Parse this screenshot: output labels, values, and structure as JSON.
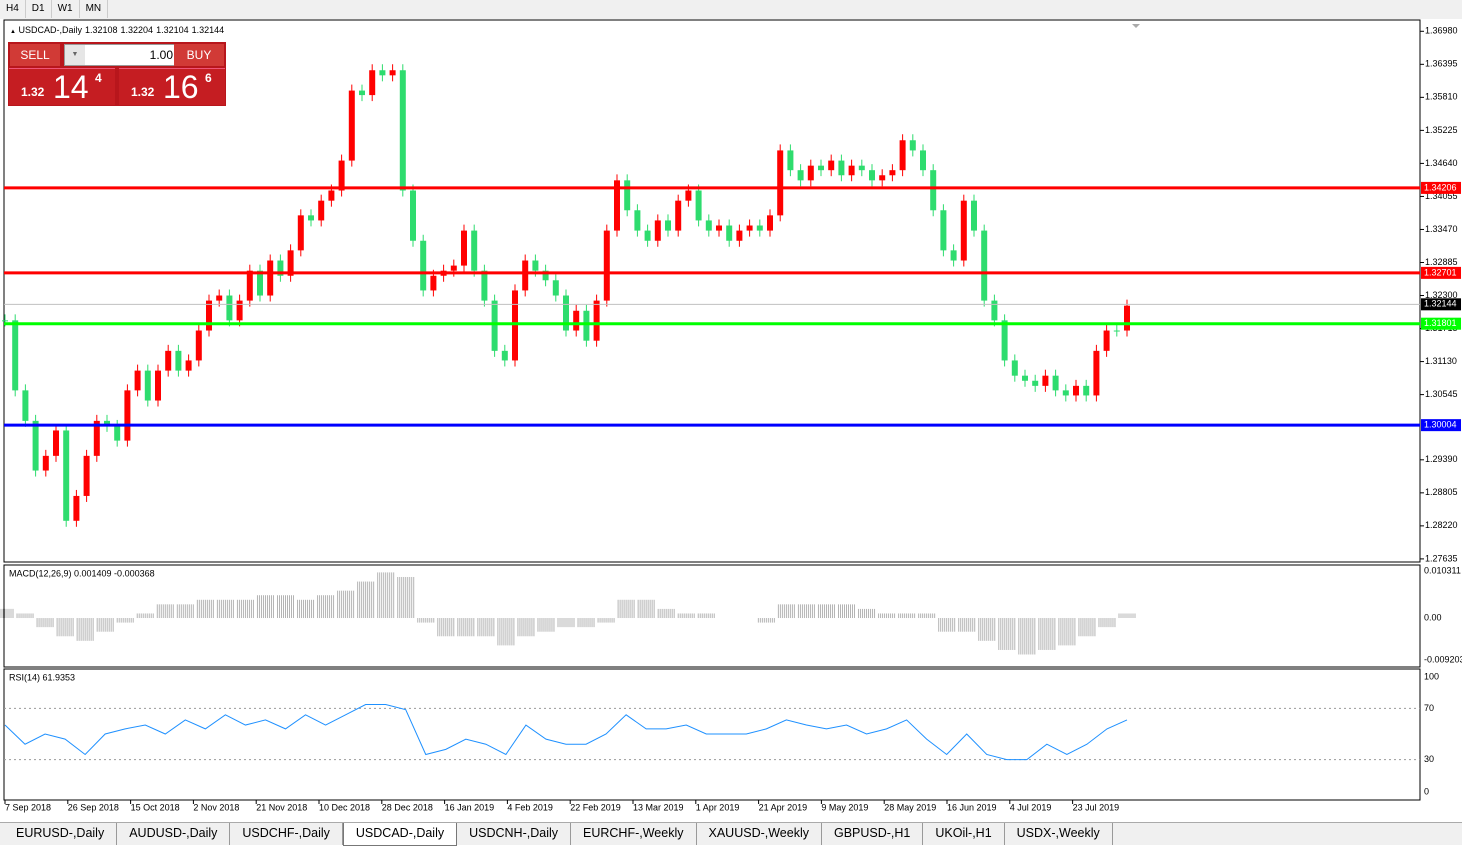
{
  "toolbar": {
    "timeframes": [
      "H4",
      "D1",
      "W1",
      "MN"
    ]
  },
  "chart": {
    "symbol": "USDCAD-,Daily",
    "ohlc": [
      "1.32108",
      "1.32204",
      "1.32104",
      "1.32144"
    ],
    "price_range": [
      1.2758,
      1.3718
    ],
    "price_axis": [
      "1.36980",
      "1.36395",
      "1.35810",
      "1.35225",
      "1.34640",
      "1.34055",
      "1.33470",
      "1.32885",
      "1.32300",
      "1.31715",
      "1.31130",
      "1.30545",
      "1.29390",
      "1.28805",
      "1.28220",
      "1.27635"
    ],
    "levels": [
      {
        "value": 1.34206,
        "label": "1.34206",
        "color": "#ff0000"
      },
      {
        "value": 1.32701,
        "label": "1.32701",
        "color": "#ff0000"
      },
      {
        "value": 1.31801,
        "label": "1.31801",
        "color": "#00ff00"
      },
      {
        "value": 1.30004,
        "label": "1.30004",
        "color": "#0000ff"
      }
    ],
    "current": {
      "value": 1.32144,
      "label": "1.32144"
    },
    "price_series": [
      1.3186,
      1.3062,
      1.3008,
      1.292,
      1.2946,
      1.2991,
      1.2831,
      1.2875,
      1.2946,
      1.3008,
      1.2999,
      1.2973,
      1.3062,
      1.3097,
      1.3044,
      1.3097,
      1.3132,
      1.3097,
      1.3115,
      1.3168,
      1.3221,
      1.323,
      1.3186,
      1.3221,
      1.3274,
      1.323,
      1.3292,
      1.3265,
      1.331,
      1.3372,
      1.3363,
      1.3398,
      1.3416,
      1.3469,
      1.3593,
      1.3585,
      1.3629,
      1.362,
      1.3629,
      1.3416,
      1.3327,
      1.3239,
      1.3265,
      1.3274,
      1.3283,
      1.3345,
      1.3274,
      1.3221,
      1.3132,
      1.3115,
      1.3239,
      1.3292,
      1.3274,
      1.3257,
      1.323,
      1.3168,
      1.3203,
      1.315,
      1.3221,
      1.3345,
      1.3434,
      1.3381,
      1.3345,
      1.3327,
      1.3363,
      1.3345,
      1.3398,
      1.3416,
      1.3363,
      1.3345,
      1.3354,
      1.3327,
      1.3345,
      1.3354,
      1.3345,
      1.3372,
      1.3487,
      1.3452,
      1.3434,
      1.346,
      1.3452,
      1.3469,
      1.3443,
      1.346,
      1.3452,
      1.3434,
      1.3443,
      1.3452,
      1.3505,
      1.3487,
      1.3452,
      1.3381,
      1.331,
      1.3292,
      1.3398,
      1.3345,
      1.3221,
      1.3186,
      1.3115,
      1.3088,
      1.3079,
      1.307,
      1.3088,
      1.3062,
      1.3053,
      1.307,
      1.3053,
      1.3132,
      1.3168,
      1.3168,
      1.3212
    ],
    "date_labels": [
      "7 Sep 2018",
      "26 Sep 2018",
      "15 Oct 2018",
      "2 Nov 2018",
      "21 Nov 2018",
      "10 Dec 2018",
      "28 Dec 2018",
      "16 Jan 2019",
      "4 Feb 2019",
      "22 Feb 2019",
      "13 Mar 2019",
      "1 Apr 2019",
      "21 Apr 2019",
      "9 May 2019",
      "28 May 2019",
      "16 Jun 2019",
      "4 Jul 2019",
      "23 Jul 2019"
    ]
  },
  "trade_panel": {
    "sell": "SELL",
    "buy": "BUY",
    "lot": "1.00",
    "sell_price": {
      "small": "1.32",
      "big": "14",
      "pip": "4"
    },
    "buy_price": {
      "small": "1.32",
      "big": "16",
      "pip": "6"
    }
  },
  "macd": {
    "label": "MACD(12,26,9) 0.001409 -0.000368",
    "axis": [
      "0.010311",
      "0.00",
      "-0.009203"
    ],
    "histogram": [
      0.002,
      0.001,
      -0.002,
      -0.004,
      -0.005,
      -0.003,
      -0.001,
      0.001,
      0.003,
      0.003,
      0.004,
      0.004,
      0.004,
      0.005,
      0.005,
      0.004,
      0.005,
      0.006,
      0.008,
      0.01,
      0.009,
      -0.001,
      -0.004,
      -0.004,
      -0.004,
      -0.006,
      -0.004,
      -0.003,
      -0.002,
      -0.002,
      -0.001,
      0.004,
      0.004,
      0.002,
      0.001,
      0.001,
      0,
      0,
      -0.001,
      0.003,
      0.003,
      0.003,
      0.003,
      0.002,
      0.001,
      0.001,
      0.001,
      -0.003,
      -0.003,
      -0.005,
      -0.007,
      -0.008,
      -0.007,
      -0.006,
      -0.004,
      -0.002,
      0.001
    ]
  },
  "rsi": {
    "label": "RSI(14) 61.9353",
    "axis": [
      100,
      70,
      30,
      0
    ],
    "values": [
      57,
      42,
      50,
      46,
      34,
      50,
      54,
      57,
      50,
      61,
      54,
      65,
      57,
      61,
      54,
      65,
      57,
      65,
      73,
      73,
      69,
      34,
      38,
      46,
      42,
      34,
      57,
      46,
      42,
      42,
      50,
      65,
      54,
      54,
      57,
      50,
      50,
      50,
      54,
      61,
      57,
      54,
      57,
      50,
      54,
      61,
      46,
      34,
      50,
      34,
      30,
      30,
      42,
      34,
      42,
      54,
      61
    ]
  },
  "tabs": [
    "EURUSD-,Daily",
    "AUDUSD-,Daily",
    "USDCHF-,Daily",
    "USDCAD-,Daily",
    "USDCNH-,Daily",
    "EURCHF-,Weekly",
    "XAUUSD-,Weekly",
    "GBPUSD-,H1",
    "UKOil-,H1",
    "USDX-,Weekly"
  ],
  "active_tab": 3
}
